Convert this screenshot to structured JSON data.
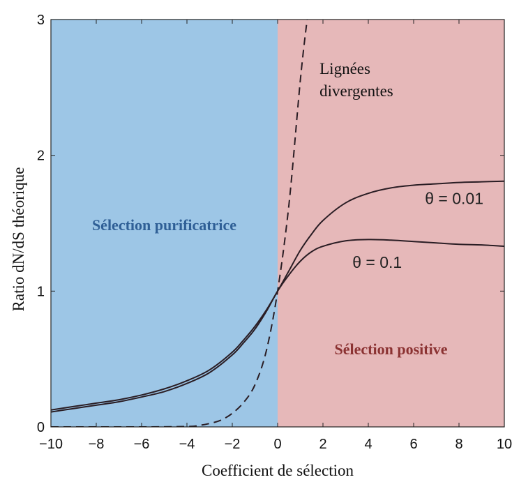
{
  "chart_data": {
    "type": "line",
    "xlabel": "Coefficient de sélection",
    "ylabel": "Ratio dN/dS théorique",
    "xlim": [
      -10,
      10
    ],
    "ylim": [
      0,
      3
    ],
    "xticks": [
      -10,
      -8,
      -6,
      -4,
      -2,
      0,
      2,
      4,
      6,
      8,
      10
    ],
    "yticks": [
      0,
      1,
      2,
      3
    ],
    "grid": false,
    "legend": "none",
    "regions": [
      {
        "label": "Sélection purificatrice",
        "x_range": [
          -10,
          0
        ],
        "color": "#9dc6e6",
        "label_color": "#2f5f96"
      },
      {
        "label": "Sélection positive",
        "x_range": [
          0,
          10
        ],
        "color": "#e6b8b9",
        "label_color": "#8b3232"
      }
    ],
    "series": [
      {
        "name": "θ = 0.01",
        "style": "solid",
        "color": "#2a1d24",
        "x": [
          -10,
          -9,
          -8,
          -7,
          -6,
          -5,
          -4,
          -3,
          -2,
          -1.5,
          -1,
          -0.5,
          0,
          0.5,
          1,
          1.5,
          2,
          3,
          4,
          5,
          6,
          7,
          8,
          9,
          10
        ],
        "y": [
          0.125,
          0.15,
          0.175,
          0.2,
          0.235,
          0.28,
          0.34,
          0.42,
          0.55,
          0.64,
          0.74,
          0.86,
          1.0,
          1.15,
          1.3,
          1.42,
          1.52,
          1.65,
          1.72,
          1.76,
          1.78,
          1.79,
          1.8,
          1.805,
          1.81
        ]
      },
      {
        "name": "θ = 0.1",
        "style": "solid",
        "color": "#2a1d24",
        "x": [
          -10,
          -9,
          -8,
          -7,
          -6,
          -5,
          -4,
          -3,
          -2,
          -1.5,
          -1,
          -0.5,
          0,
          0.5,
          1,
          1.5,
          2,
          3,
          4,
          5,
          6,
          7,
          8,
          9,
          10
        ],
        "y": [
          0.11,
          0.135,
          0.16,
          0.185,
          0.22,
          0.26,
          0.32,
          0.4,
          0.53,
          0.62,
          0.72,
          0.85,
          1.0,
          1.12,
          1.22,
          1.29,
          1.33,
          1.37,
          1.38,
          1.375,
          1.365,
          1.355,
          1.345,
          1.34,
          1.33
        ]
      },
      {
        "name": "Lignées divergentes",
        "style": "dashed",
        "color": "#2a1d24",
        "x": [
          -10,
          -6,
          -4,
          -3.5,
          -3,
          -2.5,
          -2,
          -1.5,
          -1,
          -0.5,
          0,
          0.5,
          1,
          1.3
        ],
        "y": [
          0,
          0,
          0.003,
          0.01,
          0.025,
          0.05,
          0.1,
          0.18,
          0.31,
          0.56,
          1.0,
          1.64,
          2.55,
          3.0
        ]
      }
    ],
    "annotations": [
      {
        "lines": [
          "Lignées",
          "divergentes"
        ],
        "x": 1.85,
        "y": 2.6,
        "style": "serif"
      },
      {
        "lines": [
          "θ = 0.01"
        ],
        "x": 6.5,
        "y": 1.64,
        "style": "sans"
      },
      {
        "lines": [
          "θ = 0.1"
        ],
        "x": 3.3,
        "y": 1.17,
        "style": "sans"
      }
    ]
  }
}
